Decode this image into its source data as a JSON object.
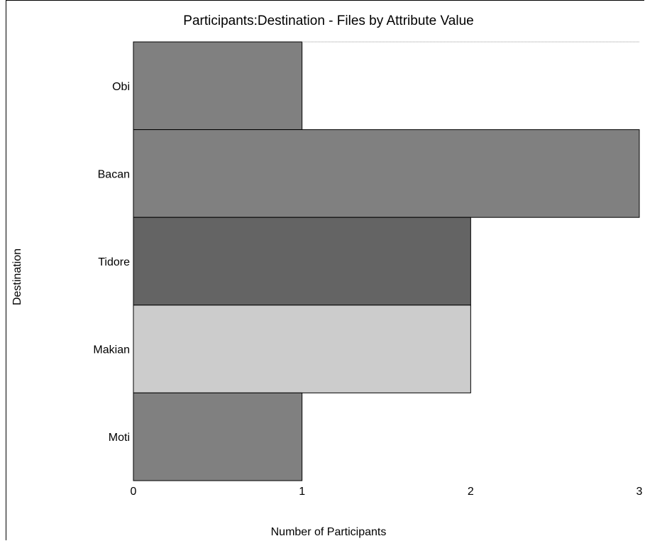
{
  "chart_data": {
    "type": "bar",
    "orientation": "horizontal",
    "title": "Participants:Destination - Files by Attribute Value",
    "xlabel": "Number of Participants",
    "ylabel": "Destination",
    "xlim": [
      0,
      3
    ],
    "xticks": [
      "0",
      "1",
      "2",
      "3"
    ],
    "categories": [
      "Obi",
      "Bacan",
      "Tidore",
      "Makian",
      "Moti"
    ],
    "values": [
      1,
      3,
      2,
      2,
      1
    ],
    "colors": [
      "#808080",
      "#808080",
      "#646464",
      "#cccccc",
      "#808080"
    ],
    "grid": false
  }
}
